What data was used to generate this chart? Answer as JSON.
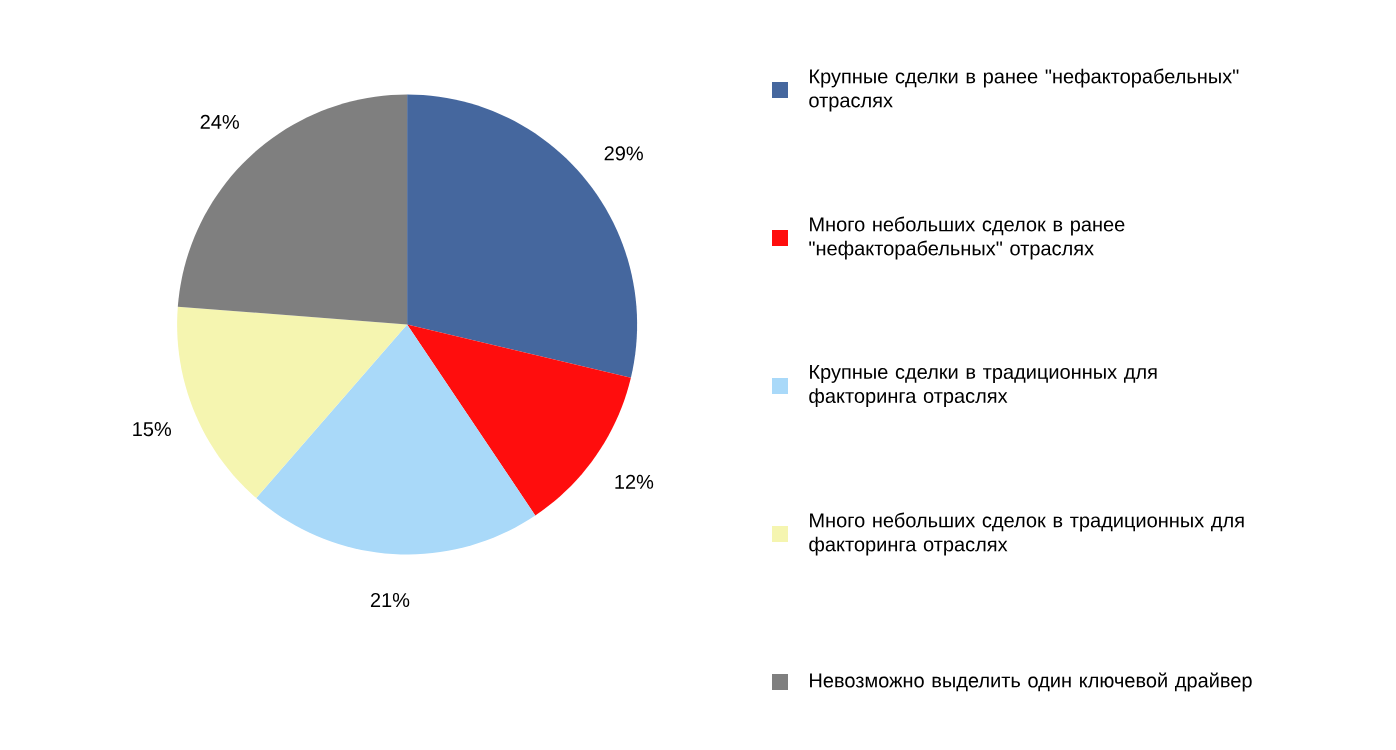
{
  "chart_data": {
    "type": "pie",
    "categories": [
      "Крупные сделки в ранее \"нефакторабельных\" отраслях",
      "Много небольших сделок в ранее \"нефакторабельных\" отраслях",
      "Крупные сделки в традиционных для факторинга отраслях",
      "Много небольших сделок в традиционных для факторинга отраслях",
      "Невозможно выделить один ключевой драйвер"
    ],
    "values": [
      29,
      12,
      21,
      15,
      24
    ],
    "value_labels": [
      "29%",
      "12%",
      "21%",
      "15%",
      "24%"
    ],
    "colors": [
      "#45679e",
      "#ff0d0d",
      "#a9d9f9",
      "#f5f5b0",
      "#7f7f7f"
    ],
    "legend": "right"
  }
}
